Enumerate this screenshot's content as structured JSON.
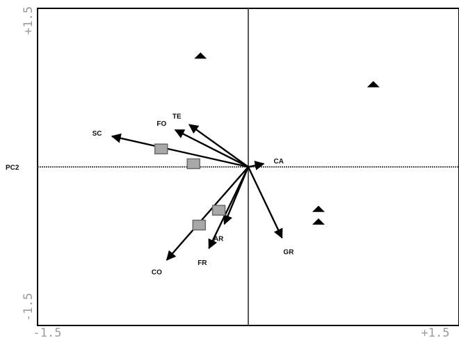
{
  "chart_data": {
    "type": "scatter",
    "subtype": "biplot",
    "xlim": [
      -1.5,
      1.5
    ],
    "ylim": [
      -1.5,
      1.5
    ],
    "x_tick_labels": [
      "-1.5",
      "+1.5"
    ],
    "y_tick_labels": [
      "+1.5",
      "-1.5"
    ],
    "ylabel": "PC2",
    "xlabel": "",
    "grid": false,
    "crosshair_at_origin": true,
    "colors": {
      "frame": "#000000",
      "crosshair": "#555555",
      "arrow": "#000000",
      "square": "#a8a8a8",
      "triangle": "#000000"
    },
    "vectors": [
      {
        "label": "SC",
        "x": -0.97,
        "y": 0.29
      },
      {
        "label": "FO",
        "x": -0.52,
        "y": 0.35
      },
      {
        "label": "TE",
        "x": -0.42,
        "y": 0.4
      },
      {
        "label": "CA",
        "x": 0.11,
        "y": 0.03
      },
      {
        "label": "GR",
        "x": 0.24,
        "y": -0.67
      },
      {
        "label": "AR",
        "x": -0.17,
        "y": -0.54
      },
      {
        "label": "FR",
        "x": -0.28,
        "y": -0.77
      },
      {
        "label": "CO",
        "x": -0.58,
        "y": -0.88
      }
    ],
    "squares": [
      {
        "x": -0.62,
        "y": 0.17
      },
      {
        "x": -0.39,
        "y": 0.03
      },
      {
        "x": -0.21,
        "y": -0.41
      },
      {
        "x": -0.35,
        "y": -0.55
      }
    ],
    "triangles": [
      {
        "x": -0.34,
        "y": 1.05
      },
      {
        "x": 0.89,
        "y": 0.78
      },
      {
        "x": 0.5,
        "y": -0.4
      },
      {
        "x": 0.5,
        "y": -0.52
      }
    ]
  }
}
